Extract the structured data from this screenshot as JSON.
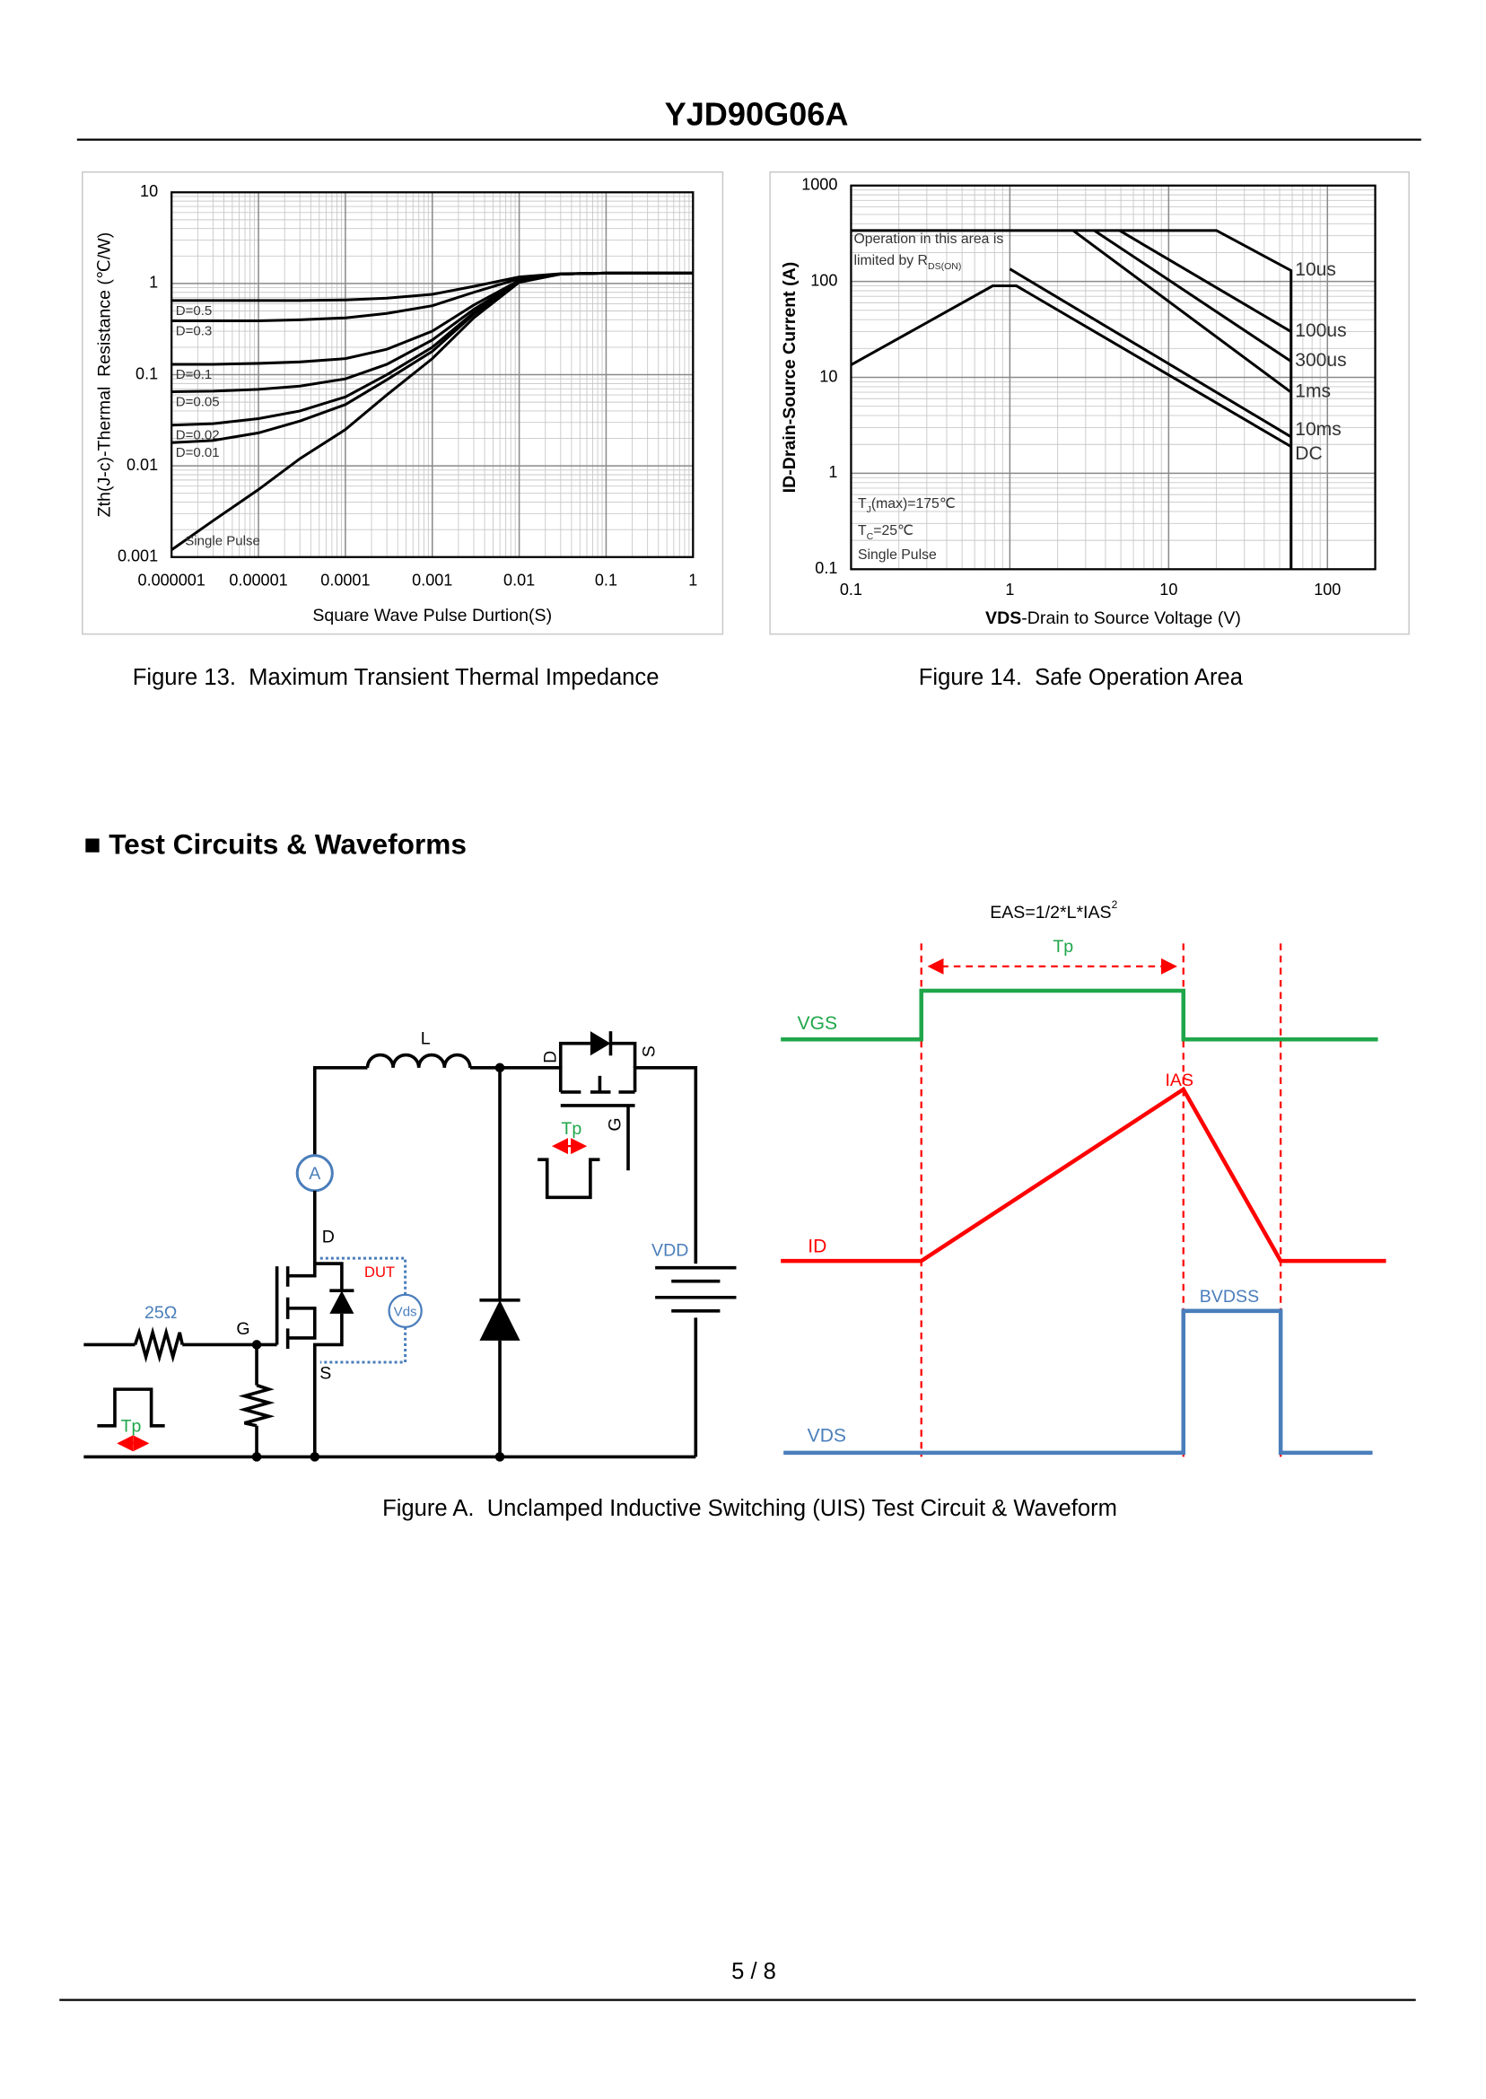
{
  "header": {
    "title": "YJD90G06A"
  },
  "chart_data": [
    {
      "type": "line",
      "title": "Figure 13.  Maximum Transient Thermal Impedance",
      "xlabel": "Square Wave Pulse Durtion(S)",
      "ylabel": "Zth(J-c)-Thermal  Resistance (℃/W)",
      "xscale": "log",
      "yscale": "log",
      "grid": true,
      "minor_grid": true,
      "x": [
        1e-06,
        3e-06,
        1e-05,
        3e-05,
        0.0001,
        0.0003,
        0.001,
        0.003,
        0.01,
        0.03,
        0.1,
        1
      ],
      "series": [
        {
          "name": "D=0.5",
          "color": "#000000",
          "values": [
            0.65,
            0.65,
            0.65,
            0.65,
            0.66,
            0.69,
            0.76,
            0.93,
            1.18,
            1.28,
            1.3,
            1.3
          ]
        },
        {
          "name": "D=0.3",
          "color": "#000000",
          "values": [
            0.39,
            0.39,
            0.39,
            0.4,
            0.42,
            0.47,
            0.57,
            0.8,
            1.13,
            1.27,
            1.3,
            1.3
          ]
        },
        {
          "name": "D=0.1",
          "color": "#000000",
          "values": [
            0.13,
            0.13,
            0.133,
            0.138,
            0.15,
            0.19,
            0.3,
            0.58,
            1.08,
            1.27,
            1.3,
            1.3
          ]
        },
        {
          "name": "D=0.05",
          "color": "#000000",
          "values": [
            0.065,
            0.066,
            0.069,
            0.075,
            0.09,
            0.13,
            0.24,
            0.52,
            1.06,
            1.27,
            1.3,
            1.3
          ]
        },
        {
          "name": "D=0.02",
          "color": "#000000",
          "values": [
            0.028,
            0.029,
            0.033,
            0.04,
            0.057,
            0.1,
            0.2,
            0.48,
            1.05,
            1.27,
            1.3,
            1.3
          ]
        },
        {
          "name": "D=0.01",
          "color": "#000000",
          "values": [
            0.018,
            0.019,
            0.023,
            0.031,
            0.047,
            0.088,
            0.18,
            0.46,
            1.04,
            1.27,
            1.3,
            1.3
          ]
        },
        {
          "name": "Single Pulse",
          "color": "#000000",
          "values": [
            0.0012,
            0.0025,
            0.0055,
            0.012,
            0.025,
            0.06,
            0.15,
            0.42,
            1.03,
            1.27,
            1.3,
            1.3
          ]
        }
      ],
      "xlim": [
        1e-06,
        1
      ],
      "ylim": [
        0.001,
        10
      ],
      "xticks": [
        1e-06,
        1e-05,
        0.0001,
        0.001,
        0.01,
        0.1,
        1
      ],
      "yticks": [
        0.001,
        0.01,
        0.1,
        1,
        10
      ]
    },
    {
      "type": "line",
      "title": "Figure 14.  Safe Operation Area",
      "xlabel": [
        "VDS",
        "-Drain to Source Voltage (V)"
      ],
      "ylabel": "ID-Drain-Source Current (A)",
      "xscale": "log",
      "yscale": "log",
      "grid": true,
      "minor_grid": true,
      "series": [
        {
          "name": "10us",
          "color": "#000000",
          "x": [
            0.1,
            20,
            59,
            59
          ],
          "values": [
            340,
            340,
            130,
            0.1
          ]
        },
        {
          "name": "100us",
          "color": "#000000",
          "x": [
            4.9,
            59
          ],
          "values": [
            340,
            30
          ]
        },
        {
          "name": "300us",
          "color": "#000000",
          "x": [
            3.4,
            59
          ],
          "values": [
            340,
            14.7
          ]
        },
        {
          "name": "1ms",
          "color": "#000000",
          "x": [
            2.5,
            59
          ],
          "values": [
            340,
            7
          ]
        },
        {
          "name": "10ms",
          "color": "#000000",
          "x": [
            1,
            59
          ],
          "values": [
            135,
            2.4
          ]
        },
        {
          "name": "DC",
          "color": "#000000",
          "x": [
            0.1,
            0.78,
            1.1,
            59
          ],
          "values": [
            13.5,
            90,
            90,
            1.9
          ]
        }
      ],
      "annotations": [
        [
          "Operation in this area is"
        ],
        [
          "limited by R",
          "DS(ON)"
        ],
        [
          "T",
          "J",
          "(max)=175℃"
        ],
        [
          "T",
          "C",
          "=25℃"
        ],
        [
          "Single Pulse"
        ]
      ],
      "xlim": [
        0.1,
        200
      ],
      "ylim": [
        0.1,
        1000
      ],
      "xticks": [
        0.1,
        1,
        10,
        100
      ],
      "yticks": [
        0.1,
        1,
        10,
        100,
        1000
      ]
    }
  ],
  "section": {
    "title": "■ Test Circuits & Waveforms"
  },
  "figure_a": {
    "circuit": {
      "inductor": "L",
      "drain": "D",
      "source": "S",
      "gate": "G",
      "ammeter": "A",
      "dut": "DUT",
      "vds_probe": "Vds",
      "supply": "VDD",
      "gate_resistor": "25Ω",
      "pulse": "Tp",
      "switch_drain": "D",
      "switch_source": "S",
      "switch_gate": "G",
      "switch_pulse": "Tp"
    },
    "waveform": {
      "eas": [
        "EAS=1/2*L*IAS",
        "2"
      ],
      "pulse_width": "Tp",
      "vgs": "VGS",
      "ias": "IAS",
      "id": "ID",
      "bvdss": "BVDSS",
      "vds": "VDS"
    },
    "caption": "Figure A.  Unclamped Inductive Switching (UIS) Test Circuit & Waveform"
  },
  "footer": {
    "page": "5 / 8"
  }
}
